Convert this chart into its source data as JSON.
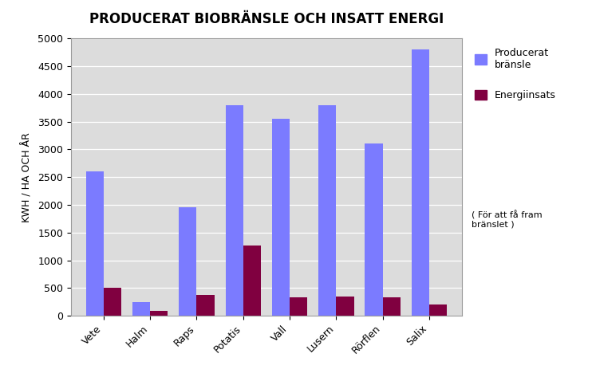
{
  "title": "PRODUCERAT BIOBRÄNSLE OCH INSATT ENERGI",
  "categories": [
    "Vete",
    "Halm",
    "Raps",
    "Potatis",
    "Vall",
    "Lusern",
    "Rörflen",
    "Salix"
  ],
  "producerat": [
    2600,
    250,
    1950,
    3800,
    3550,
    3800,
    3100,
    4800
  ],
  "energiinsats": [
    510,
    80,
    380,
    1270,
    330,
    340,
    330,
    195
  ],
  "color_producerat": "#7B7BFF",
  "color_energiinsats": "#800040",
  "ylabel": "KWH / HA OCH ÅR",
  "ylim": [
    0,
    5000
  ],
  "yticks": [
    0,
    500,
    1000,
    1500,
    2000,
    2500,
    3000,
    3500,
    4000,
    4500,
    5000
  ],
  "legend_label1": "Producerat\nbränsle",
  "legend_label2": "Energiinsats",
  "legend_note": "( För att få fram\nbränslet )",
  "bg_color": "#DCDCDC",
  "outer_bg": "#FFFFFF",
  "title_fontsize": 12,
  "bar_width": 0.38
}
